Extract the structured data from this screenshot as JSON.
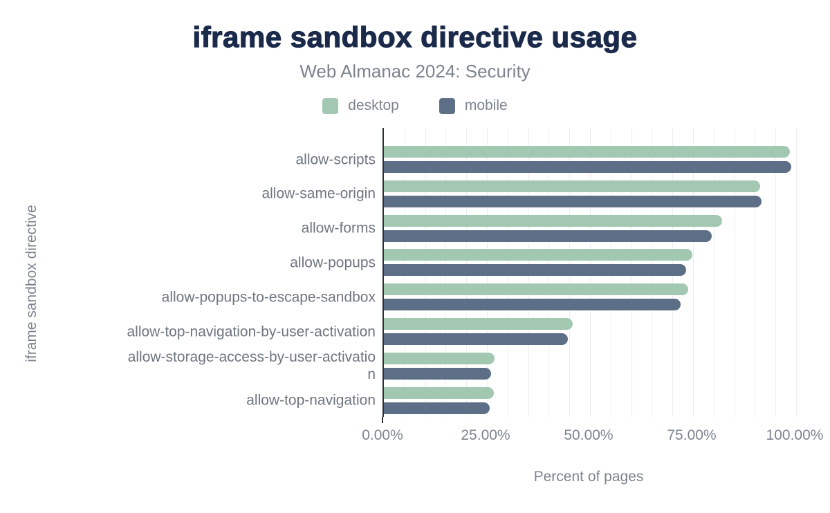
{
  "chart_data": {
    "type": "bar",
    "orientation": "horizontal",
    "title": "iframe sandbox directive usage",
    "subtitle": "Web Almanac 2024: Security",
    "xlabel": "Percent of pages",
    "ylabel": "iframe sandbox directive",
    "xlim": [
      0,
      100
    ],
    "x_ticks": [
      "0.00%",
      "25.00%",
      "50.00%",
      "75.00%",
      "100.00%"
    ],
    "grid": "vertical, minor lines every 5%",
    "legend_position": "top-center",
    "categories": [
      "allow-scripts",
      "allow-same-origin",
      "allow-forms",
      "allow-popups",
      "allow-popups-to-escape-sandbox",
      "allow-top-navigation-by-user-activation",
      "allow-storage-access-by-user-activatio\nn",
      "allow-top-navigation"
    ],
    "series": [
      {
        "name": "desktop",
        "color": "#a2c8b2",
        "values": [
          98.5,
          91.3,
          82.0,
          74.9,
          73.9,
          45.8,
          26.8,
          26.7
        ]
      },
      {
        "name": "mobile",
        "color": "#5d6f87",
        "values": [
          98.9,
          91.6,
          79.6,
          73.3,
          71.9,
          44.6,
          26.0,
          25.6
        ]
      }
    ]
  },
  "colors": {
    "title": "#1b2a4a",
    "text_gray": "#7d848e",
    "category_label": "#6e757e",
    "axis": "#282e36",
    "gridline": "#ededf2",
    "background": "#ffffff"
  }
}
